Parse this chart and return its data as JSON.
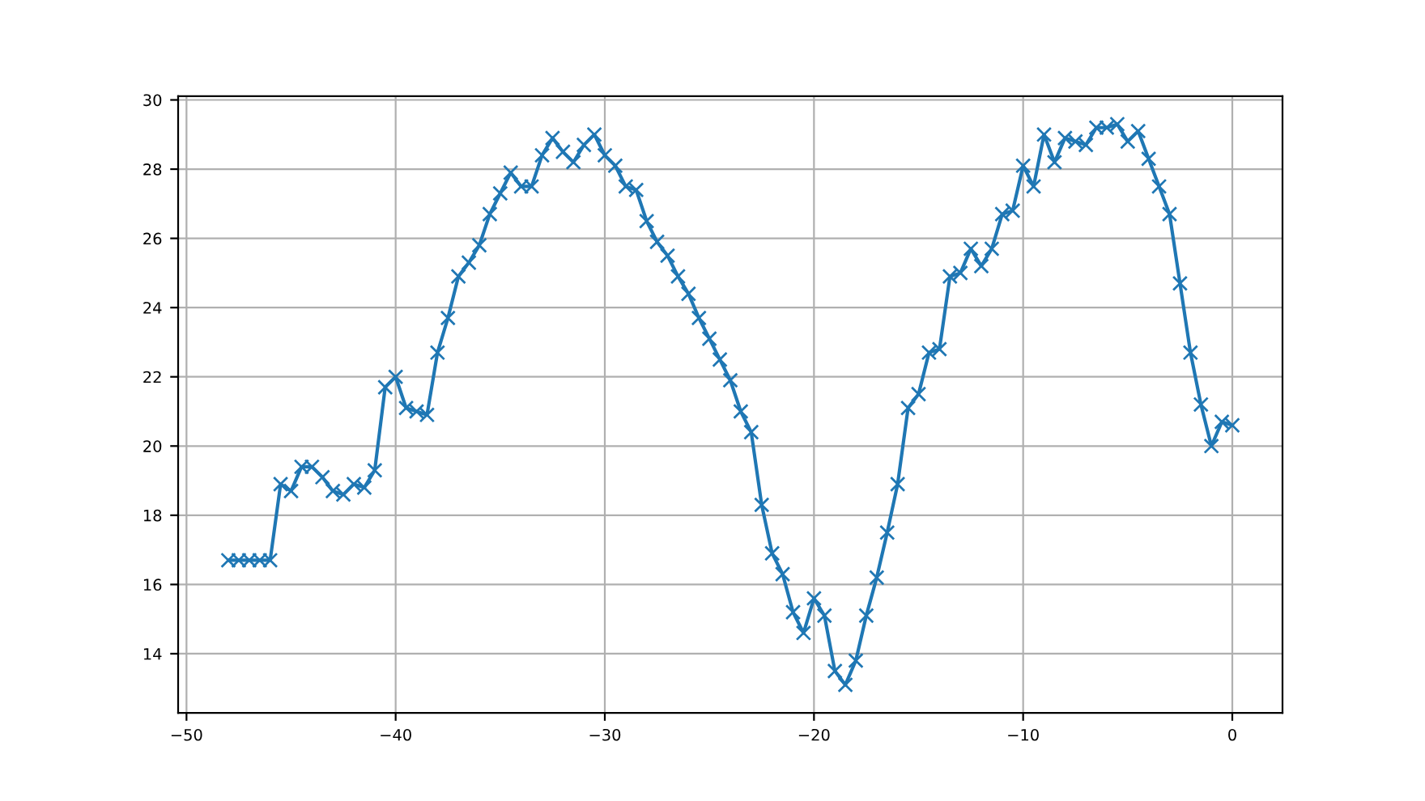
{
  "chart_data": {
    "type": "line",
    "marker": "cross",
    "line_style": "solid",
    "grid": true,
    "x": [
      -48,
      -47.5,
      -47,
      -46.5,
      -46,
      -45.5,
      -45,
      -44.5,
      -44,
      -43.5,
      -43,
      -42.5,
      -42,
      -41.5,
      -41,
      -40.5,
      -40,
      -39.5,
      -39,
      -38.5,
      -38,
      -37.5,
      -37,
      -36.5,
      -36,
      -35.5,
      -35,
      -34.5,
      -34,
      -33.5,
      -33,
      -32.5,
      -32,
      -31.5,
      -31,
      -30.5,
      -30,
      -29.5,
      -29,
      -28.5,
      -28,
      -27.5,
      -27,
      -26.5,
      -26,
      -25.5,
      -25,
      -24.5,
      -24,
      -23.5,
      -23,
      -22.5,
      -22,
      -21.5,
      -21,
      -20.5,
      -20,
      -19.5,
      -19,
      -18.5,
      -18,
      -17.5,
      -17,
      -16.5,
      -16,
      -15.5,
      -15,
      -14.5,
      -14,
      -13.5,
      -13,
      -12.5,
      -12,
      -11.5,
      -11,
      -10.5,
      -10,
      -9.5,
      -9,
      -8.5,
      -8,
      -7.5,
      -7,
      -6.5,
      -6,
      -5.5,
      -5,
      -4.5,
      -4,
      -3.5,
      -3,
      -2.5,
      -2,
      -1.5,
      -1,
      -0.5,
      0
    ],
    "series": [
      {
        "color": "#1f77b4",
        "values": [
          16.7,
          16.7,
          16.7,
          16.7,
          16.7,
          18.9,
          18.7,
          19.4,
          19.4,
          19.1,
          18.7,
          18.6,
          18.9,
          18.8,
          19.3,
          21.7,
          22.0,
          21.1,
          21.0,
          20.9,
          22.7,
          23.7,
          24.9,
          25.3,
          25.8,
          26.7,
          27.3,
          27.9,
          27.5,
          27.5,
          28.4,
          28.9,
          28.5,
          28.2,
          28.7,
          29.0,
          28.4,
          28.1,
          27.5,
          27.4,
          26.5,
          25.9,
          25.5,
          24.9,
          24.4,
          23.7,
          23.1,
          22.5,
          21.9,
          21.0,
          20.4,
          18.3,
          16.9,
          16.3,
          15.2,
          14.6,
          15.6,
          15.1,
          13.5,
          13.1,
          13.8,
          15.1,
          16.2,
          17.5,
          18.9,
          21.1,
          21.5,
          22.7,
          22.8,
          24.9,
          25.0,
          25.7,
          25.2,
          25.7,
          26.7,
          26.8,
          28.1,
          27.5,
          29.0,
          28.2,
          28.9,
          28.8,
          28.7,
          29.2,
          29.2,
          29.3,
          28.8,
          29.1,
          28.3,
          27.5,
          26.7,
          24.7,
          22.7,
          21.2,
          20.0,
          20.7,
          20.6
        ]
      }
    ],
    "xlim": [
      -50.4,
      2.4
    ],
    "xticks": [
      {
        "value": -50,
        "label": "−50"
      },
      {
        "value": -40,
        "label": "−40"
      },
      {
        "value": -30,
        "label": "−30"
      },
      {
        "value": -20,
        "label": "−20"
      },
      {
        "value": -10,
        "label": "−10"
      },
      0
    ],
    "ylim": [
      12.29,
      30.11
    ],
    "yticks": [
      14,
      16,
      18,
      20,
      22,
      24,
      26,
      28,
      30
    ]
  }
}
